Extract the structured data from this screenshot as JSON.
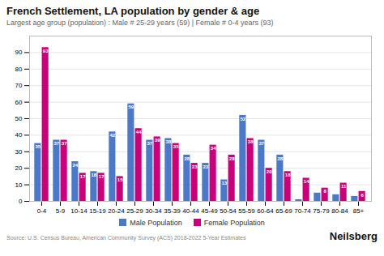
{
  "chart_data": {
    "type": "bar",
    "title": "French Settlement, LA population by gender & age",
    "subtitle": "Largest age group (population) : Male # 25-29 years (59) | Female # 0-4 years (93)",
    "categories": [
      "0-4",
      "5-9",
      "10-14",
      "15-19",
      "20-24",
      "25-29",
      "30-34",
      "35-39",
      "40-44",
      "45-49",
      "50-54",
      "55-59",
      "60-64",
      "65-69",
      "70-74",
      "75-79",
      "80-84",
      "85+"
    ],
    "series": [
      {
        "name": "Male Population",
        "color": "#4C78C8",
        "values": [
          35,
          37,
          24,
          18,
          42,
          59,
          37,
          38,
          28,
          23,
          13,
          52,
          37,
          28,
          1,
          5,
          4,
          3
        ],
        "value_labels": [
          "35",
          "37",
          "24",
          "18",
          "42",
          "59",
          "37",
          "38",
          "28",
          "23",
          "13",
          "52",
          "37",
          "28",
          null,
          null,
          null,
          null
        ]
      },
      {
        "name": "Female Population",
        "color": "#C8007A",
        "values": [
          93,
          37,
          17,
          17,
          15,
          44,
          39,
          35,
          23,
          34,
          28,
          38,
          20,
          18,
          14,
          8,
          11,
          6
        ]
      }
    ],
    "ylim": [
      0,
      100
    ],
    "yticks": [
      0,
      10,
      20,
      30,
      40,
      50,
      60,
      70,
      80,
      90
    ],
    "grid": true,
    "legend": "bottom",
    "data_labels": true,
    "annotations": [
      "Source: U.S. Census Bureau, American Community Survey (ACS) 2018-2022 5-Year Estimates",
      "Neilsberg"
    ]
  }
}
